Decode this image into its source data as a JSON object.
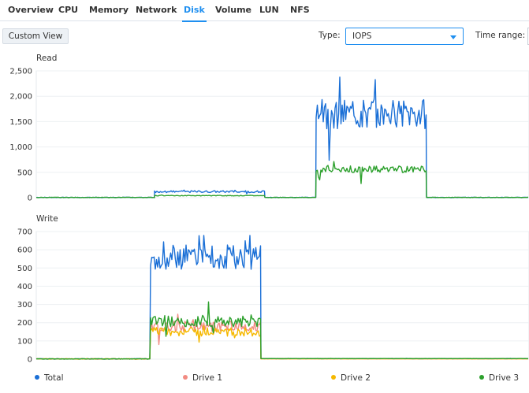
{
  "tabs": [
    {
      "label": "Overview",
      "active": false
    },
    {
      "label": "CPU",
      "active": false
    },
    {
      "label": "Memory",
      "active": false
    },
    {
      "label": "Network",
      "active": false
    },
    {
      "label": "Disk",
      "active": true
    },
    {
      "label": "Volume",
      "active": false
    },
    {
      "label": "LUN",
      "active": false
    },
    {
      "label": "NFS",
      "active": false
    }
  ],
  "toolbar": {
    "custom_view_label": "Custom View",
    "type_label": "Type:",
    "type_value": "IOPS",
    "time_range_label": "Time range:"
  },
  "colors": {
    "accent": "#1f8ff0",
    "total": "#1a6fd6",
    "drive1": "#f28b82",
    "drive2": "#f5b800",
    "drive3": "#2ca02c"
  },
  "legend": [
    {
      "label": "Total",
      "color": "#1a6fd6"
    },
    {
      "label": "Drive 1",
      "color": "#f28b82"
    },
    {
      "label": "Drive 2",
      "color": "#f5b800"
    },
    {
      "label": "Drive 3",
      "color": "#2ca02c"
    }
  ],
  "chart_data": [
    {
      "type": "line",
      "title": "Read",
      "xlabel": "",
      "ylabel": "",
      "ylim": [
        0,
        2500
      ],
      "yticks": [
        0,
        500,
        1000,
        1500,
        2000,
        2500
      ],
      "grid": true,
      "series_shape": [
        {
          "name": "Total",
          "segments": [
            {
              "x": [
                0,
                150
              ],
              "level": 0
            },
            {
              "x": [
                150,
                290
              ],
              "level": 120
            },
            {
              "x": [
                290,
                355
              ],
              "level": 0
            },
            {
              "x": [
                355,
                495
              ],
              "level": 1650
            },
            {
              "x": [
                495,
                625
              ],
              "level": 0
            }
          ]
        },
        {
          "name": "Drive 3",
          "segments": [
            {
              "x": [
                0,
                150
              ],
              "level": 0
            },
            {
              "x": [
                150,
                290
              ],
              "level": 40
            },
            {
              "x": [
                290,
                355
              ],
              "level": 0
            },
            {
              "x": [
                355,
                495
              ],
              "level": 560
            },
            {
              "x": [
                495,
                625
              ],
              "level": 0
            }
          ]
        }
      ],
      "peaks": {
        "total_max": 2370,
        "drive3_max": 760
      }
    },
    {
      "type": "line",
      "title": "Write",
      "xlabel": "",
      "ylabel": "",
      "ylim": [
        0,
        700
      ],
      "yticks": [
        0,
        100,
        200,
        300,
        400,
        500,
        600,
        700
      ],
      "grid": true,
      "series_shape": [
        {
          "name": "Total",
          "segments": [
            {
              "x": [
                0,
                145
              ],
              "level": 0
            },
            {
              "x": [
                145,
                285
              ],
              "level": 560
            },
            {
              "x": [
                285,
                625
              ],
              "level": 3
            }
          ]
        },
        {
          "name": "Drive 1",
          "segments": [
            {
              "x": [
                0,
                145
              ],
              "level": 0
            },
            {
              "x": [
                145,
                285
              ],
              "level": 180
            },
            {
              "x": [
                285,
                625
              ],
              "level": 2
            }
          ]
        },
        {
          "name": "Drive 2",
          "segments": [
            {
              "x": [
                0,
                145
              ],
              "level": 0
            },
            {
              "x": [
                145,
                285
              ],
              "level": 150
            },
            {
              "x": [
                285,
                625
              ],
              "level": 2
            }
          ]
        },
        {
          "name": "Drive 3",
          "segments": [
            {
              "x": [
                0,
                145
              ],
              "level": 0
            },
            {
              "x": [
                145,
                285
              ],
              "level": 210
            },
            {
              "x": [
                285,
                625
              ],
              "level": 3
            }
          ]
        }
      ],
      "spikes": {
        "total_max": 680,
        "late_spike": 155
      }
    }
  ]
}
